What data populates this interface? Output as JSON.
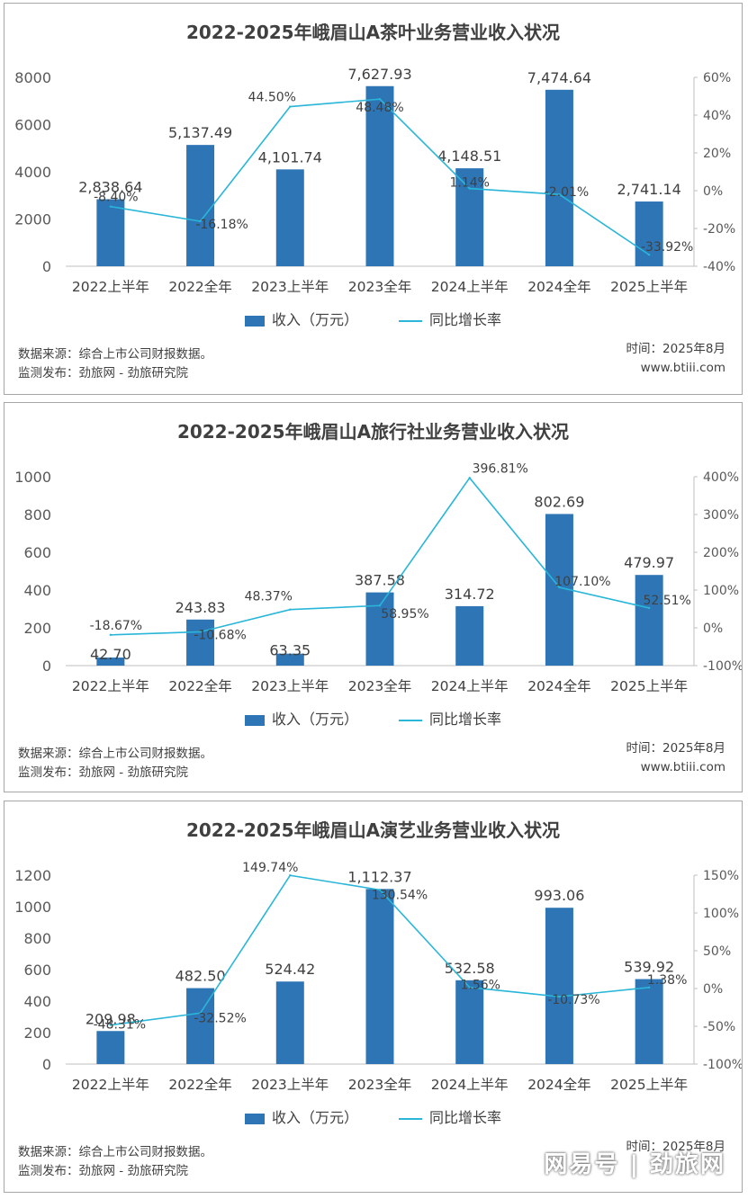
{
  "legend": {
    "bar_label": "收入（万元）",
    "line_label": "同比增长率"
  },
  "footer": {
    "source": "数据来源：综合上市公司财报数据。",
    "publisher": "监测发布：劲旅网 - 劲旅研究院",
    "time": "时间：2025年8月",
    "site": "www.btiii.com"
  },
  "watermark": "网易号 | 劲旅网",
  "chart_data": [
    {
      "type": "bar",
      "title": "2022-2025年峨眉山A茶叶业务营业收入状况",
      "categories": [
        "2022上半年",
        "2022全年",
        "2023上半年",
        "2023全年",
        "2024上半年",
        "2024全年",
        "2025上半年"
      ],
      "series": [
        {
          "name": "收入（万元）",
          "type": "bar",
          "axis": "left",
          "values": [
            2838.64,
            5137.49,
            4101.74,
            7627.93,
            4148.51,
            7474.64,
            2741.14
          ],
          "labels": [
            "2,838.64",
            "5,137.49",
            "4,101.74",
            "7,627.93",
            "4,148.51",
            "7,474.64",
            "2,741.14"
          ]
        },
        {
          "name": "同比增长率",
          "type": "line",
          "axis": "right",
          "values": [
            -8.4,
            -16.18,
            44.5,
            48.48,
            1.14,
            -2.01,
            -33.92
          ],
          "labels": [
            "-8.40%",
            "-16.18%",
            "44.50%",
            "48.48%",
            "1.14%",
            "-2.01%",
            "-33.92%"
          ]
        }
      ],
      "ylim": [
        0,
        8000
      ],
      "yticks": [
        "0",
        "2000",
        "4000",
        "6000",
        "8000"
      ],
      "y2lim": [
        -40,
        60
      ],
      "y2ticks": [
        "-40%",
        "-20%",
        "0%",
        "20%",
        "40%",
        "60%"
      ],
      "colors": {
        "bar": "#2e75b6",
        "line": "#29b6d8"
      }
    },
    {
      "type": "bar",
      "title": "2022-2025年峨眉山A旅行社业务营业收入状况",
      "categories": [
        "2022上半年",
        "2022全年",
        "2023上半年",
        "2023全年",
        "2024上半年",
        "2024全年",
        "2025上半年"
      ],
      "series": [
        {
          "name": "收入（万元）",
          "type": "bar",
          "axis": "left",
          "values": [
            42.7,
            243.83,
            63.35,
            387.58,
            314.72,
            802.69,
            479.97
          ],
          "labels": [
            "42.70",
            "243.83",
            "63.35",
            "387.58",
            "314.72",
            "802.69",
            "479.97"
          ]
        },
        {
          "name": "同比增长率",
          "type": "line",
          "axis": "right",
          "values": [
            -18.67,
            -10.68,
            48.37,
            58.95,
            396.81,
            107.1,
            52.51
          ],
          "labels": [
            "-18.67%",
            "-10.68%",
            "48.37%",
            "58.95%",
            "396.81%",
            "107.10%",
            "52.51%"
          ]
        }
      ],
      "ylim": [
        0,
        1000
      ],
      "yticks": [
        "0",
        "200",
        "400",
        "600",
        "800",
        "1000"
      ],
      "y2lim": [
        -100,
        400
      ],
      "y2ticks": [
        "-100%",
        "0%",
        "100%",
        "200%",
        "300%",
        "400%"
      ],
      "colors": {
        "bar": "#2e75b6",
        "line": "#29b6d8"
      }
    },
    {
      "type": "bar",
      "title": "2022-2025年峨眉山A演艺业务营业收入状况",
      "categories": [
        "2022上半年",
        "2022全年",
        "2023上半年",
        "2023全年",
        "2024上半年",
        "2024全年",
        "2025上半年"
      ],
      "series": [
        {
          "name": "收入（万元）",
          "type": "bar",
          "axis": "left",
          "values": [
            209.98,
            482.5,
            524.42,
            1112.37,
            532.58,
            993.06,
            539.92
          ],
          "labels": [
            "209.98",
            "482.50",
            "524.42",
            "1,112.37",
            "532.58",
            "993.06",
            "539.92"
          ]
        },
        {
          "name": "同比增长率",
          "type": "line",
          "axis": "right",
          "values": [
            -48.31,
            -32.52,
            149.74,
            130.54,
            1.56,
            -10.73,
            1.38
          ],
          "labels": [
            "-48.31%",
            "-32.52%",
            "149.74%",
            "130.54%",
            "1.56%",
            "-10.73%",
            "1.38%"
          ]
        }
      ],
      "ylim": [
        0,
        1200
      ],
      "yticks": [
        "0",
        "200",
        "400",
        "600",
        "800",
        "1000",
        "1200"
      ],
      "y2lim": [
        -100,
        150
      ],
      "y2ticks": [
        "-100%",
        "-50%",
        "0%",
        "50%",
        "100%",
        "150%"
      ],
      "colors": {
        "bar": "#2e75b6",
        "line": "#29b6d8"
      }
    }
  ]
}
